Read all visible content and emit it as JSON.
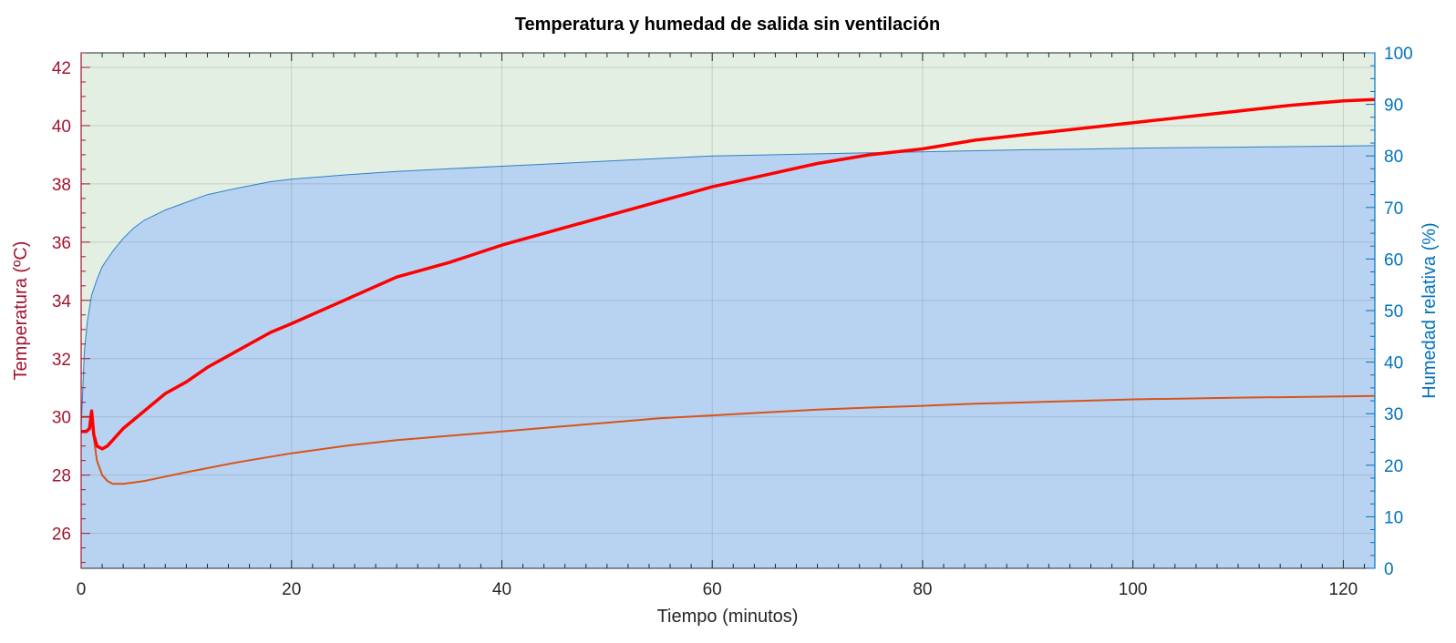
{
  "chart_data": {
    "type": "area",
    "title": "Temperatura y humedad de salida sin ventilación",
    "xlabel": "Tiempo (minutos)",
    "ylabel_left": "Temperatura (ºC)",
    "ylabel_right": "Humedad relativa (%)",
    "xlim": [
      0,
      123
    ],
    "ylim_left": [
      24.8,
      42.5
    ],
    "ylim_right": [
      0,
      100
    ],
    "x_ticks": [
      0,
      20,
      40,
      60,
      80,
      100,
      120
    ],
    "y_left_ticks": [
      26,
      28,
      30,
      32,
      34,
      36,
      38,
      40,
      42
    ],
    "y_right_ticks": [
      0,
      10,
      20,
      30,
      40,
      50,
      60,
      70,
      80,
      90,
      100
    ],
    "grid": true,
    "colors": {
      "left_axis": "#a2142f",
      "right_axis": "#0072bd",
      "background_fill": "#e2efe2",
      "humidity_fill": "#b8d3f2",
      "humidity_line": "#2f7fc8",
      "temperature_outlet": "#ff0000",
      "temperature_other": "#d95319"
    },
    "series": [
      {
        "axis": "right",
        "style": "filled-area",
        "x": [
          0,
          0.3,
          0.6,
          1,
          1.5,
          2,
          3,
          4,
          5,
          6,
          8,
          10,
          12,
          15,
          18,
          20,
          25,
          30,
          35,
          40,
          45,
          50,
          55,
          60,
          65,
          70,
          75,
          80,
          85,
          90,
          95,
          100,
          105,
          110,
          115,
          120,
          123
        ],
        "values": [
          27,
          42,
          48,
          53,
          56,
          58.5,
          61.5,
          64,
          66,
          67.5,
          69.5,
          71,
          72.5,
          73.8,
          75,
          75.5,
          76.3,
          77,
          77.5,
          78,
          78.5,
          79,
          79.5,
          80,
          80.2,
          80.4,
          80.6,
          80.8,
          81,
          81.2,
          81.3,
          81.5,
          81.6,
          81.7,
          81.8,
          81.9,
          82
        ]
      },
      {
        "axis": "left",
        "style": "thick-line",
        "x": [
          0,
          0.5,
          0.8,
          1,
          1.2,
          1.5,
          2,
          2.5,
          3,
          4,
          5,
          6,
          8,
          10,
          12,
          15,
          18,
          20,
          25,
          30,
          35,
          40,
          45,
          50,
          55,
          60,
          65,
          70,
          75,
          80,
          85,
          90,
          95,
          100,
          105,
          110,
          115,
          120,
          123
        ],
        "values": [
          29.5,
          29.5,
          29.6,
          30.2,
          29.4,
          29.0,
          28.9,
          29.0,
          29.2,
          29.6,
          29.9,
          30.2,
          30.8,
          31.2,
          31.7,
          32.3,
          32.9,
          33.2,
          34.0,
          34.8,
          35.3,
          35.9,
          36.4,
          36.9,
          37.4,
          37.9,
          38.3,
          38.7,
          39.0,
          39.2,
          39.5,
          39.7,
          39.9,
          40.1,
          40.3,
          40.5,
          40.7,
          40.85,
          40.9
        ]
      },
      {
        "axis": "left",
        "style": "thin-line",
        "x": [
          0,
          0.5,
          1,
          1.2,
          1.5,
          2,
          2.5,
          3,
          4,
          5,
          6,
          8,
          10,
          15,
          20,
          25,
          30,
          35,
          40,
          45,
          50,
          55,
          60,
          65,
          70,
          75,
          80,
          85,
          90,
          95,
          100,
          105,
          110,
          115,
          120,
          123
        ],
        "values": [
          30.0,
          30.0,
          30.0,
          29.3,
          28.5,
          28.0,
          27.8,
          27.7,
          27.7,
          27.75,
          27.8,
          27.95,
          28.1,
          28.45,
          28.75,
          29.0,
          29.2,
          29.35,
          29.5,
          29.65,
          29.8,
          29.95,
          30.05,
          30.15,
          30.25,
          30.32,
          30.38,
          30.45,
          30.5,
          30.55,
          30.6,
          30.63,
          30.66,
          30.68,
          30.7,
          30.72
        ]
      }
    ]
  }
}
